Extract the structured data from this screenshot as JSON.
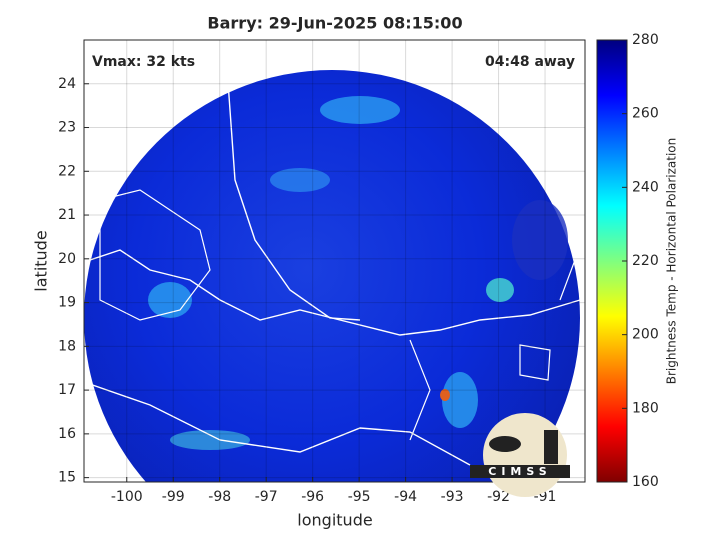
{
  "chart_data": {
    "type": "heatmap",
    "title": "Barry: 29-Jun-2025 08:15:00",
    "annotations": [
      "Vmax: 32 kts",
      "04:48 away"
    ],
    "xlabel": "longitude",
    "ylabel": "latitude",
    "xlim": [
      -100.92,
      -90.14
    ],
    "xticks": [
      -100,
      -99,
      -98,
      -97,
      -96,
      -95,
      -94,
      -93,
      -92,
      -91
    ],
    "ylim": [
      14.9,
      25.0
    ],
    "yticks": [
      15,
      16,
      17,
      18,
      19,
      20,
      21,
      22,
      23,
      24
    ],
    "grid": true,
    "colorbar": {
      "label": "Brightness Temp - Horizontal Polarization",
      "colormap": "jet",
      "clim": [
        160,
        280
      ],
      "ticks": [
        160,
        180,
        200,
        220,
        240,
        260,
        280
      ]
    },
    "logo": "CIMSS"
  }
}
